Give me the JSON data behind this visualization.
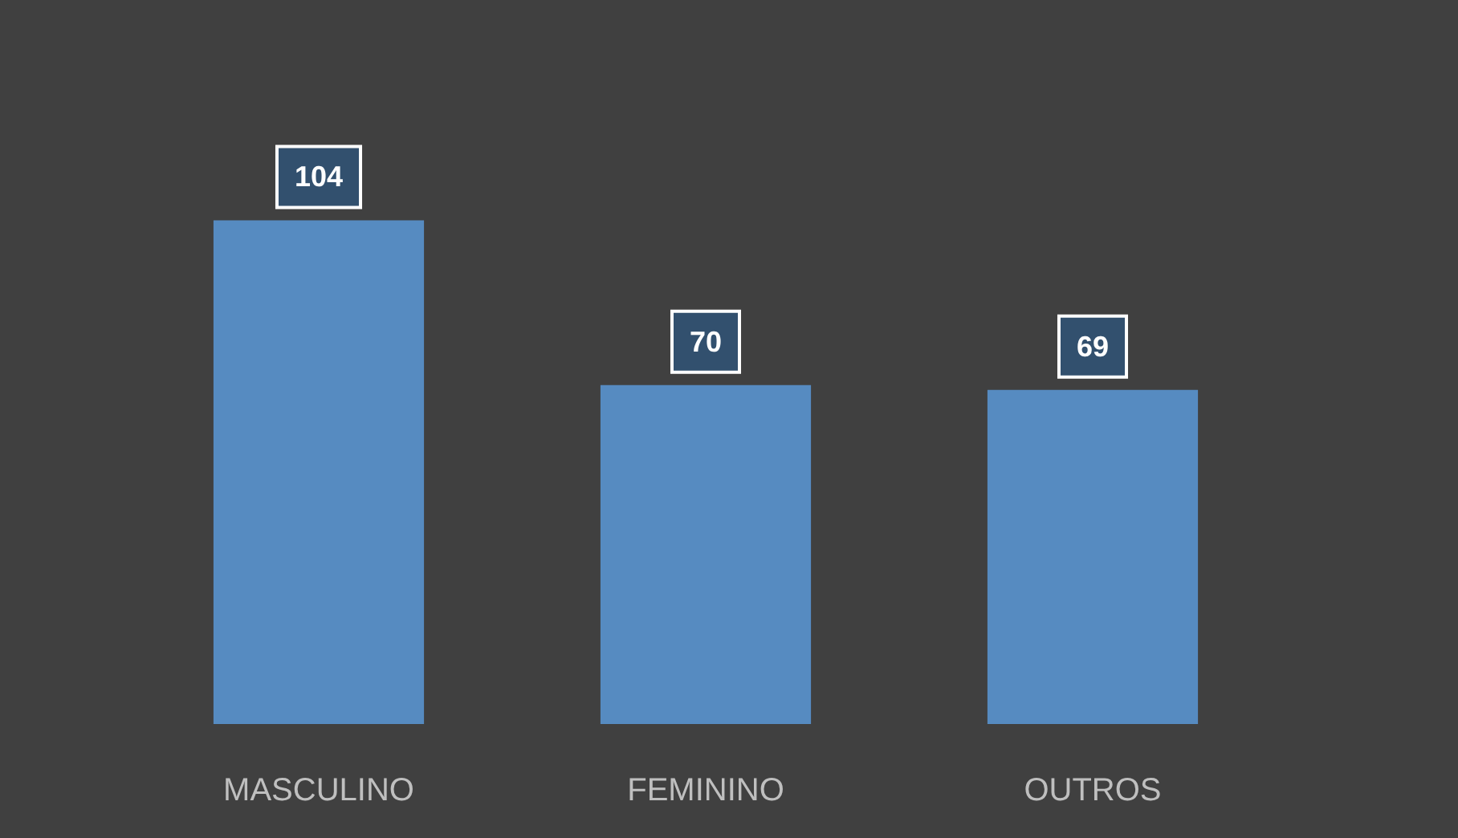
{
  "chart_data": {
    "type": "bar",
    "categories": [
      "MASCULINO",
      "FEMININO",
      "OUTROS"
    ],
    "values": [
      104,
      70,
      69
    ],
    "color": "#568bc1",
    "data_labels": true
  }
}
